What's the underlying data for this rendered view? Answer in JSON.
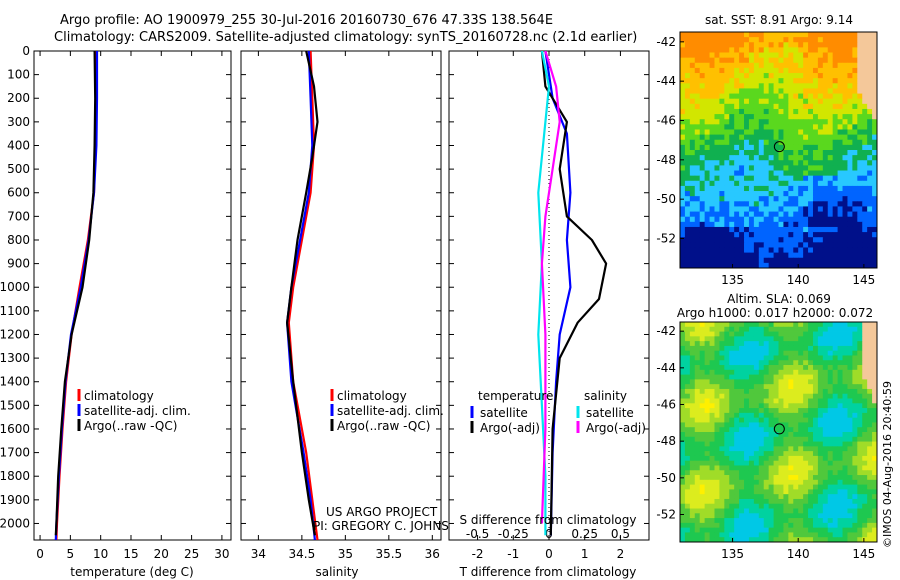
{
  "header": {
    "line1": "Argo profile: AO 1900979_255 30-Jul-2016 20160730_676 47.33S 138.564E",
    "line2": "Climatology: CARS2009. Satellite-adjusted climatology: synTS_20160728.nc (2.1d earlier)"
  },
  "credits": {
    "project": "US ARGO PROJECT",
    "pi": "PI: GREGORY C. JOHNSON",
    "stamp": "©IMOS 04-Aug-2016 20:40:59"
  },
  "colors": {
    "climatology": "#ff0000",
    "satellite": "#0000ff",
    "argo": "#000000",
    "salinity_satellite": "#00e5ee",
    "salinity_argo": "#ff00ff",
    "frame": "#000000"
  },
  "chart_data": [
    {
      "type": "line",
      "name": "temperature-profile",
      "xlabel": "temperature (deg C)",
      "ylabel": "",
      "xlim": [
        -1,
        31.5
      ],
      "ylim": [
        2070,
        0
      ],
      "xticks": [
        0,
        5,
        10,
        15,
        20,
        25,
        30
      ],
      "yticks": [
        0,
        100,
        200,
        300,
        400,
        500,
        600,
        700,
        800,
        900,
        1000,
        1100,
        1200,
        1300,
        1400,
        1500,
        1600,
        1700,
        1800,
        1900,
        2000
      ],
      "legend_position": "lower-center",
      "series": [
        {
          "name": "climatology",
          "color": "#ff0000",
          "points": [
            [
              9.3,
              0
            ],
            [
              9.2,
              200
            ],
            [
              9.1,
              400
            ],
            [
              8.9,
              600
            ],
            [
              7.9,
              800
            ],
            [
              6.5,
              1000
            ],
            [
              5.2,
              1200
            ],
            [
              4.3,
              1400
            ],
            [
              3.7,
              1600
            ],
            [
              3.2,
              1800
            ],
            [
              2.8,
              2000
            ],
            [
              2.7,
              2070
            ]
          ]
        },
        {
          "name": "satellite-adj. clim.",
          "color": "#0000ff",
          "points": [
            [
              9.4,
              0
            ],
            [
              9.4,
              200
            ],
            [
              9.3,
              400
            ],
            [
              8.9,
              600
            ],
            [
              8.0,
              800
            ],
            [
              6.7,
              1000
            ],
            [
              5.1,
              1200
            ],
            [
              4.2,
              1400
            ],
            [
              3.6,
              1600
            ],
            [
              3.1,
              1800
            ],
            [
              2.7,
              2000
            ],
            [
              2.6,
              2070
            ]
          ]
        },
        {
          "name": "Argo(..raw -QC)",
          "color": "#000000",
          "points": [
            [
              9.0,
              0
            ],
            [
              9.1,
              200
            ],
            [
              9.0,
              400
            ],
            [
              8.8,
              600
            ],
            [
              8.1,
              800
            ],
            [
              7.0,
              1000
            ],
            [
              5.2,
              1200
            ],
            [
              4.1,
              1400
            ],
            [
              3.5,
              1600
            ],
            [
              3.0,
              1800
            ],
            [
              2.7,
              2000
            ],
            [
              2.6,
              2050
            ]
          ]
        }
      ]
    },
    {
      "type": "line",
      "name": "salinity-profile",
      "xlabel": "salinity",
      "ylabel": "",
      "xlim": [
        33.8,
        36.1
      ],
      "ylim": [
        2070,
        0
      ],
      "xticks": [
        34,
        34.5,
        35,
        35.5,
        36
      ],
      "legend_position": "lower-right",
      "series": [
        {
          "name": "climatology",
          "color": "#ff0000",
          "points": [
            [
              34.6,
              0
            ],
            [
              34.62,
              200
            ],
            [
              34.64,
              400
            ],
            [
              34.6,
              600
            ],
            [
              34.5,
              800
            ],
            [
              34.4,
              1000
            ],
            [
              34.35,
              1150
            ],
            [
              34.4,
              1400
            ],
            [
              34.55,
              1700
            ],
            [
              34.62,
              1900
            ],
            [
              34.68,
              2070
            ]
          ]
        },
        {
          "name": "satellite-adj. clim.",
          "color": "#0000ff",
          "points": [
            [
              34.58,
              0
            ],
            [
              34.6,
              200
            ],
            [
              34.62,
              400
            ],
            [
              34.58,
              600
            ],
            [
              34.48,
              800
            ],
            [
              34.38,
              1000
            ],
            [
              34.33,
              1150
            ],
            [
              34.38,
              1400
            ],
            [
              34.52,
              1700
            ],
            [
              34.6,
              1900
            ],
            [
              34.65,
              2070
            ]
          ]
        },
        {
          "name": "Argo(..raw -QC)",
          "color": "#000000",
          "points": [
            [
              34.55,
              0
            ],
            [
              34.64,
              150
            ],
            [
              34.68,
              300
            ],
            [
              34.62,
              450
            ],
            [
              34.55,
              600
            ],
            [
              34.45,
              800
            ],
            [
              34.38,
              1000
            ],
            [
              34.33,
              1150
            ],
            [
              34.4,
              1400
            ],
            [
              34.5,
              1700
            ],
            [
              34.58,
              1900
            ],
            [
              34.65,
              2050
            ]
          ]
        }
      ]
    },
    {
      "type": "line",
      "name": "difference-profile",
      "xlabel": "T difference from climatology",
      "title_in_plot": "S difference from climatology",
      "xlim": [
        -2.8,
        2.8
      ],
      "ylim": [
        2070,
        0
      ],
      "xticks": [
        -2,
        -1,
        0,
        1,
        2
      ],
      "xticks_top_labels": [
        "-0.5",
        "-0.25",
        "0",
        "0.25",
        "0.5"
      ],
      "legend_position": "lower-center",
      "legend_groups": [
        {
          "title": "temperature",
          "items": [
            {
              "label": "satellite",
              "color": "#0000ff"
            },
            {
              "label": "Argo(-adj)",
              "color": "#000000"
            }
          ]
        },
        {
          "title": "salinity",
          "items": [
            {
              "label": "satellite",
              "color": "#00e5ee"
            },
            {
              "label": "Argo(-adj)",
              "color": "#ff00ff"
            }
          ]
        }
      ],
      "series": [
        {
          "name": "temperature satellite",
          "color": "#0000ff",
          "points": [
            [
              -0.1,
              0
            ],
            [
              0.1,
              200
            ],
            [
              0.5,
              350
            ],
            [
              0.6,
              600
            ],
            [
              0.5,
              800
            ],
            [
              0.6,
              1000
            ],
            [
              0.3,
              1200
            ],
            [
              0.2,
              1400
            ],
            [
              0.1,
              1700
            ],
            [
              0.05,
              2050
            ]
          ]
        },
        {
          "name": "temperature Argo(-adj)",
          "color": "#000000",
          "points": [
            [
              -0.2,
              0
            ],
            [
              -0.1,
              150
            ],
            [
              0.5,
              300
            ],
            [
              0.3,
              500
            ],
            [
              0.5,
              700
            ],
            [
              1.2,
              800
            ],
            [
              1.6,
              900
            ],
            [
              1.4,
              1050
            ],
            [
              0.8,
              1150
            ],
            [
              0.3,
              1300
            ],
            [
              0.1,
              1600
            ],
            [
              0.05,
              2050
            ]
          ]
        },
        {
          "name": "salinity satellite",
          "color": "#00e5ee",
          "points": [
            [
              -0.2,
              0
            ],
            [
              0.0,
              150
            ],
            [
              -0.1,
              300
            ],
            [
              -0.3,
              600
            ],
            [
              -0.2,
              900
            ],
            [
              -0.3,
              1200
            ],
            [
              -0.2,
              1500
            ],
            [
              -0.1,
              1800
            ],
            [
              -0.1,
              2050
            ]
          ]
        },
        {
          "name": "salinity Argo(-adj)",
          "color": "#ff00ff",
          "points": [
            [
              -0.1,
              0
            ],
            [
              0.2,
              150
            ],
            [
              0.3,
              300
            ],
            [
              0.1,
              500
            ],
            [
              -0.1,
              700
            ],
            [
              -0.2,
              900
            ],
            [
              -0.1,
              1200
            ],
            [
              -0.1,
              1600
            ],
            [
              -0.2,
              2000
            ]
          ]
        }
      ]
    },
    {
      "type": "heatmap",
      "name": "sst-map",
      "title": "sat. SST: 8.91  Argo: 9.14",
      "xlim": [
        131,
        146
      ],
      "ylim": [
        -53.5,
        -41.5
      ],
      "xticks": [
        135,
        140,
        145
      ],
      "yticks": [
        -42,
        -44,
        -46,
        -48,
        -50,
        -52
      ],
      "marker": {
        "lon": 138.564,
        "lat": -47.33
      },
      "colors": [
        "#00108a",
        "#0064ff",
        "#28c8ff",
        "#10b050",
        "#5ad81e",
        "#d2e600",
        "#ffc000",
        "#ff8c00"
      ]
    },
    {
      "type": "heatmap",
      "name": "sla-map",
      "title": "Altim. SLA: 0.069",
      "subtitle": "Argo h1000: 0.017  h2000: 0.072",
      "xlim": [
        131,
        146
      ],
      "ylim": [
        -53.5,
        -41.5
      ],
      "xticks": [
        135,
        140,
        145
      ],
      "yticks": [
        -42,
        -44,
        -46,
        -48,
        -50,
        -52
      ],
      "marker": {
        "lon": 138.564,
        "lat": -47.33
      },
      "colors": [
        "#00c8e6",
        "#00d2a0",
        "#1ec850",
        "#50c83c",
        "#a0dc28",
        "#dcec1e",
        "#fff000",
        "#ffc800"
      ]
    }
  ]
}
